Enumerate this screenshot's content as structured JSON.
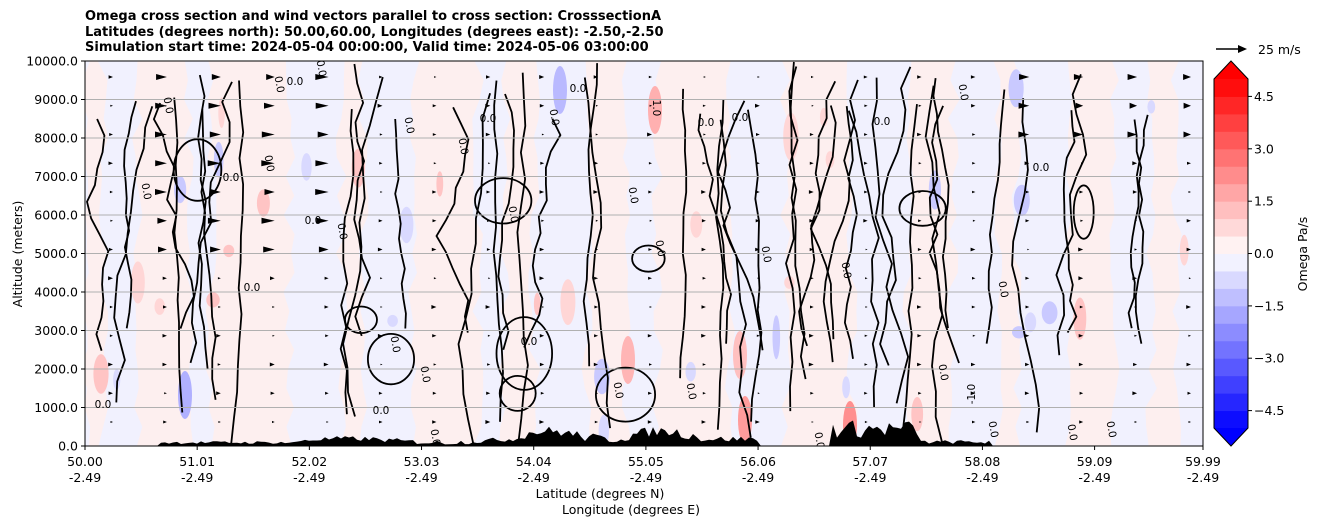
{
  "title": {
    "line1": "Omega cross section and wind vectors parallel to cross section: CrosssectionA",
    "line2": "Latitudes (degrees north): 50.00,60.00, Longitudes (degrees east): -2.50,-2.50",
    "line3": "Simulation start time: 2024-05-04 00:00:00, Valid time: 2024-05-06 03:00:00"
  },
  "chart_data": {
    "type": "heatmap",
    "xlabel": "Latitude (degrees N)",
    "xlabel2": "Longitude (degrees E)",
    "ylabel": "Altitude (meters)",
    "x_ticks": [
      {
        "lat": "50.00",
        "lon": "-2.49"
      },
      {
        "lat": "51.01",
        "lon": "-2.49"
      },
      {
        "lat": "52.02",
        "lon": "-2.49"
      },
      {
        "lat": "53.03",
        "lon": "-2.49"
      },
      {
        "lat": "54.04",
        "lon": "-2.49"
      },
      {
        "lat": "55.05",
        "lon": "-2.49"
      },
      {
        "lat": "56.06",
        "lon": "-2.49"
      },
      {
        "lat": "57.07",
        "lon": "-2.49"
      },
      {
        "lat": "58.08",
        "lon": "-2.49"
      },
      {
        "lat": "59.09",
        "lon": "-2.49"
      },
      {
        "lat": "59.99",
        "lon": "-2.49"
      }
    ],
    "y_ticks": [
      "0.0",
      "1000.0",
      "2000.0",
      "3000.0",
      "4000.0",
      "5000.0",
      "6000.0",
      "7000.0",
      "8000.0",
      "9000.0",
      "10000.0"
    ],
    "ylim": [
      0,
      10000
    ],
    "grid": true,
    "colorbar": {
      "label": "Omega Pa/s",
      "range": [
        -5.0,
        5.0
      ],
      "ticks": [
        "4.5",
        "3.0",
        "1.5",
        "0.0",
        "−1.5",
        "−3.0",
        "−4.5"
      ],
      "extend": "both",
      "cmap": "bwr"
    },
    "contour_label": "0.0",
    "contour_label_neg": "-1.0",
    "contour_label_pos": "1.0",
    "vector_key": "25 m/s",
    "terrain_color": "#000000"
  }
}
